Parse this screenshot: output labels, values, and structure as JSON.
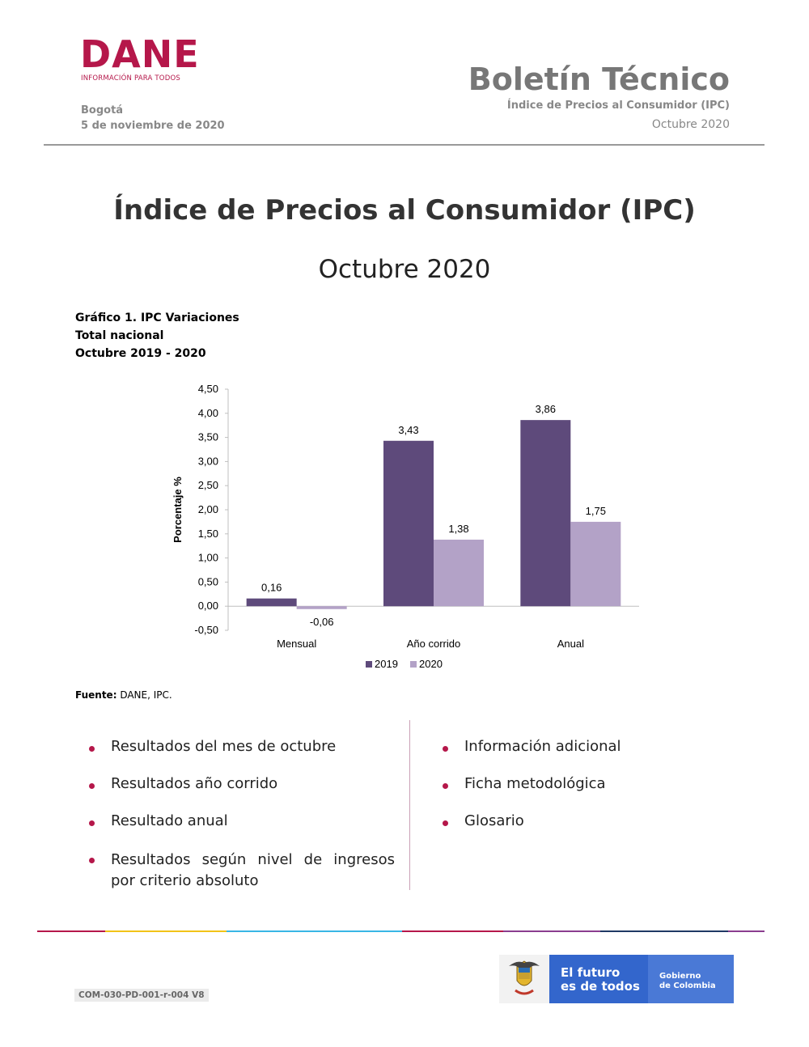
{
  "header": {
    "logo_text": "DANE",
    "logo_tagline": "INFORMACIÓN PARA TODOS",
    "city": "Bogotá",
    "date": "5 de noviembre de 2020",
    "bulletin_title": "Boletín Técnico",
    "bulletin_subtitle": "Índice de Precios al Consumidor (IPC)",
    "bulletin_month": "Octubre 2020"
  },
  "main": {
    "title": "Índice de Precios al Consumidor (IPC)",
    "subtitle": "Octubre 2020"
  },
  "chart_caption": {
    "line1": "Gráfico 1. IPC Variaciones",
    "line2": "Total nacional",
    "line3": "Octubre 2019 - 2020"
  },
  "chart_data": {
    "type": "bar",
    "categories": [
      "Mensual",
      "Año corrido",
      "Anual"
    ],
    "series": [
      {
        "name": "2019",
        "values": [
          0.16,
          3.43,
          3.86
        ],
        "labels": [
          "0,16",
          "3,43",
          "3,86"
        ],
        "color": "#5e4a7b"
      },
      {
        "name": "2020",
        "values": [
          -0.06,
          1.38,
          1.75
        ],
        "labels": [
          "-0,06",
          "1,38",
          "1,75"
        ],
        "color": "#b3a2c7"
      }
    ],
    "ylabel": "Porcentaje %",
    "xlabel": "",
    "ylim": [
      -0.5,
      4.5
    ],
    "yticks": [
      4.5,
      4.0,
      3.5,
      3.0,
      2.5,
      2.0,
      1.5,
      1.0,
      0.5,
      0.0,
      -0.5
    ],
    "ytick_labels": [
      "4,50",
      "4,00",
      "3,50",
      "3,00",
      "2,50",
      "2,00",
      "1,50",
      "1,00",
      "0,50",
      "0,00",
      "-0,50"
    ],
    "grid": false,
    "legend": "bottom"
  },
  "source": {
    "label": "Fuente:",
    "text": " DANE, IPC."
  },
  "toc": {
    "left": [
      "Resultados del mes de octubre",
      "Resultados año corrido",
      "Resultado anual",
      "Resultados según nivel de ingresos por criterio absoluto"
    ],
    "right": [
      "Información adicional",
      "Ficha metodológica",
      "Glosario"
    ]
  },
  "footer": {
    "code": "COM-030-PD-001-r-004 V8",
    "gov_slogan_line1": "El futuro",
    "gov_slogan_line2": "es de todos",
    "gov_name_line1": "Gobierno",
    "gov_name_line2": "de Colombia",
    "colors": {
      "magenta": "#b5174a",
      "yellow": "#f2c318",
      "cyan": "#38b6e5",
      "purple": "#8a3d8f",
      "navy": "#1f3864",
      "blue": "#3366cc"
    }
  }
}
